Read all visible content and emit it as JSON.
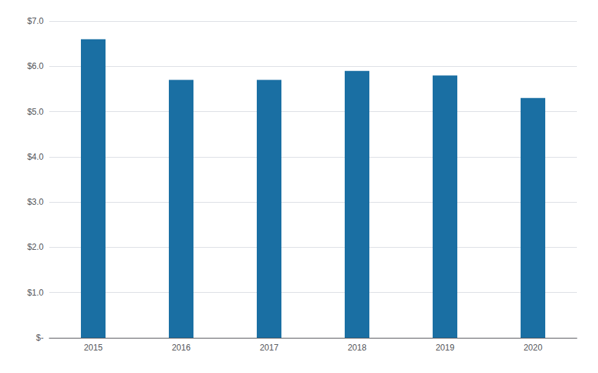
{
  "chart_data": {
    "type": "bar",
    "categories": [
      "2015",
      "2016",
      "2017",
      "2018",
      "2019",
      "2020"
    ],
    "values": [
      6.6,
      5.7,
      5.7,
      5.9,
      5.8,
      5.3
    ],
    "color": "#1a6fa3",
    "ylim": [
      0,
      7.0
    ],
    "yticks": [
      {
        "value": 0,
        "label": "$-"
      },
      {
        "value": 1.0,
        "label": "$1.0"
      },
      {
        "value": 2.0,
        "label": "$2.0"
      },
      {
        "value": 3.0,
        "label": "$3.0"
      },
      {
        "value": 4.0,
        "label": "$4.0"
      },
      {
        "value": 5.0,
        "label": "$5.0"
      },
      {
        "value": 6.0,
        "label": "$6.0"
      },
      {
        "value": 7.0,
        "label": "$7.0"
      }
    ],
    "grid": true
  }
}
